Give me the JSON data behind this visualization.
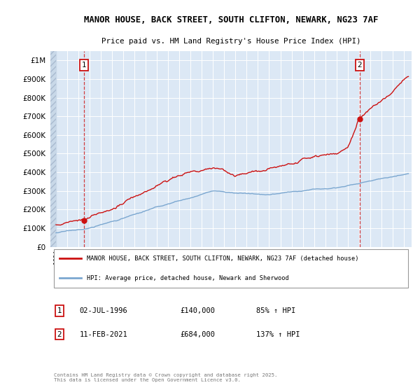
{
  "title_line1": "MANOR HOUSE, BACK STREET, SOUTH CLIFTON, NEWARK, NG23 7AF",
  "title_line2": "Price paid vs. HM Land Registry's House Price Index (HPI)",
  "ylim": [
    0,
    1050000
  ],
  "yticks": [
    0,
    100000,
    200000,
    300000,
    400000,
    500000,
    600000,
    700000,
    800000,
    900000,
    1000000
  ],
  "hpi_color": "#7ba7d0",
  "price_color": "#cc1111",
  "sale1_year": 1996.5,
  "sale1_price": 140000,
  "sale1_date": "02-JUL-1996",
  "sale1_hpi_pct": "85%",
  "sale2_year": 2021.1,
  "sale2_price": 684000,
  "sale2_date": "11-FEB-2021",
  "sale2_hpi_pct": "137%",
  "legend_label1": "MANOR HOUSE, BACK STREET, SOUTH CLIFTON, NEWARK, NG23 7AF (detached house)",
  "legend_label2": "HPI: Average price, detached house, Newark and Sherwood",
  "footnote": "Contains HM Land Registry data © Crown copyright and database right 2025.\nThis data is licensed under the Open Government Licence v3.0.",
  "plot_bg": "#dce8f5",
  "hatch_color": "#c8d8e8"
}
